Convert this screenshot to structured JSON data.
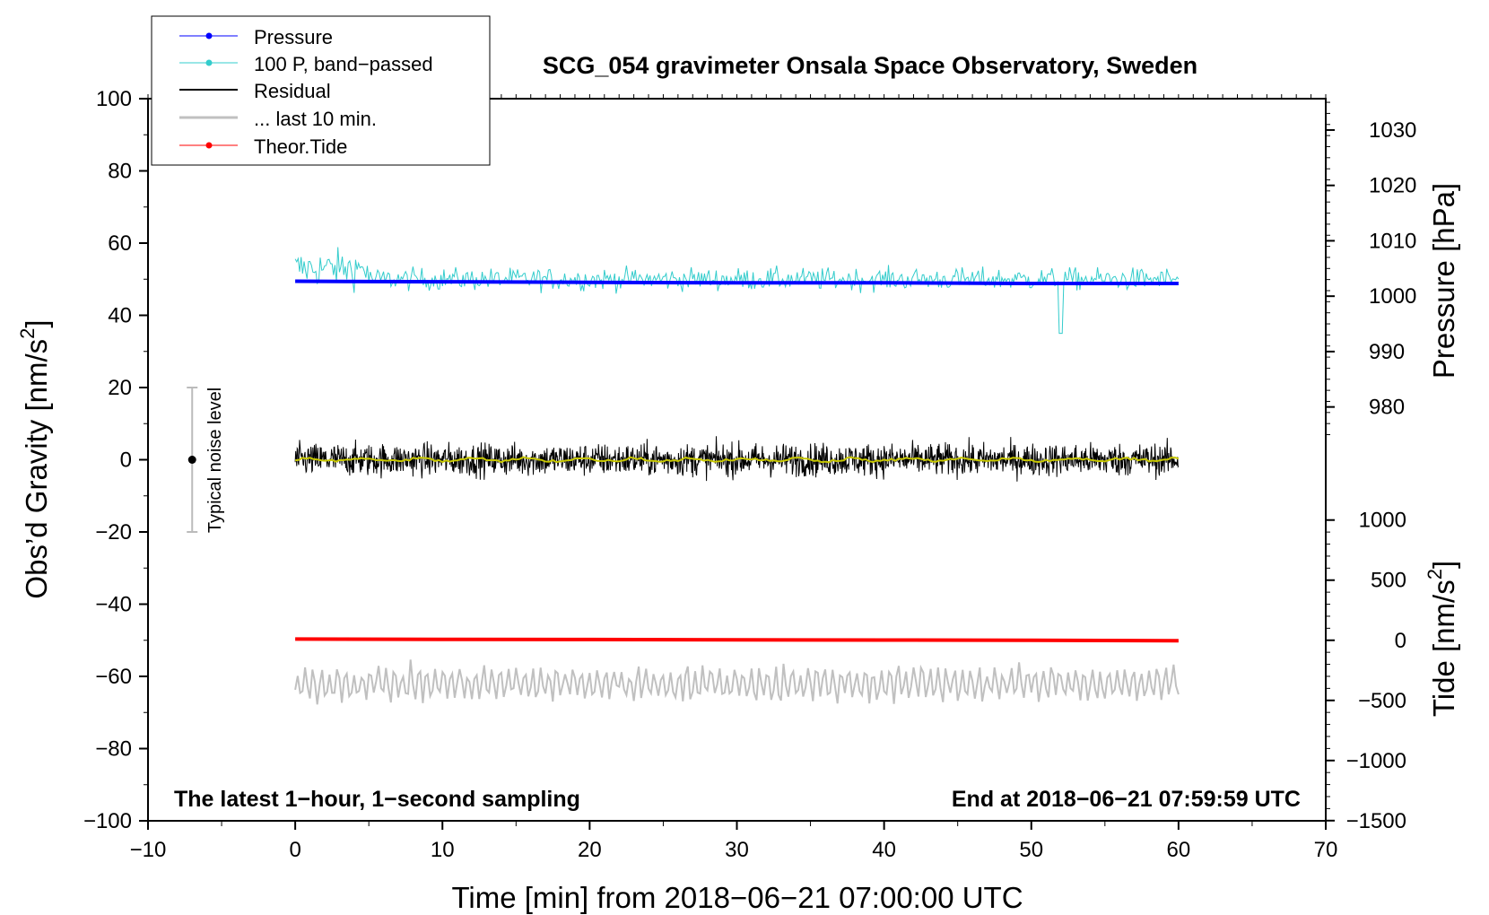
{
  "colors": {
    "pressure": "#0000ff",
    "band_passed": "#33cccc",
    "residual": "#000000",
    "residual_smooth": "#c8c800",
    "last10": "#c0c0c0",
    "tide": "#ff0000",
    "noise_bar": "#bbbbbb"
  },
  "chart_data": {
    "type": "line",
    "title": "SCG_054 gravimeter Onsala Space Observatory, Sweden",
    "xlabel": "Time [min] from 2018−06−21 07:00:00 UTC",
    "ylabel": "Obs’d Gravity [nm/s",
    "ylabel_sup": "2",
    "ylabel_end": "]",
    "xlim": [
      -10,
      70
    ],
    "ylim": [
      -100,
      100
    ],
    "x_ticks": [
      -10,
      0,
      10,
      20,
      30,
      40,
      50,
      60,
      70
    ],
    "x_tick_labels": [
      "−10",
      "0",
      "10",
      "20",
      "30",
      "40",
      "50",
      "60",
      "70"
    ],
    "y_ticks": [
      -100,
      -80,
      -60,
      -40,
      -20,
      0,
      20,
      40,
      60,
      80,
      100
    ],
    "y_tick_labels": [
      "−100",
      "−80",
      "−60",
      "−40",
      "−20",
      "0",
      "20",
      "40",
      "60",
      "80",
      "100"
    ],
    "pressure_axis": {
      "label": "Pressure [hPa]",
      "ticks": [
        980,
        990,
        1000,
        1010,
        1020,
        1030
      ],
      "tick_labels": [
        "980",
        "990",
        "1000",
        "1010",
        "1020",
        "1030"
      ],
      "mapping_gravity_at_1000": 45.3,
      "gravity_per_hPa": 1.534
    },
    "tide_axis": {
      "label": "Tide [nm/s",
      "label_sup": "2",
      "label_end": "]",
      "ticks": [
        -1500,
        -1000,
        -500,
        0,
        500,
        1000
      ],
      "tick_labels": [
        "−1500",
        "−1000",
        "−500",
        "0",
        "500",
        "1000"
      ],
      "mapping_gravity_at_0": -50,
      "gravity_per_unit": 0.0333
    },
    "series": [
      {
        "name": "Pressure",
        "unit": "hPa",
        "x": [
          0,
          10,
          20,
          30,
          40,
          50,
          60
        ],
        "values": [
          1002.7,
          1002.6,
          1002.5,
          1002.4,
          1002.4,
          1002.3,
          1002.3
        ]
      },
      {
        "name": "100 P, band−passed",
        "unit": "nm/s2",
        "approx_mean": 50.0,
        "approx_range": [
          35,
          60
        ]
      },
      {
        "name": "Residual",
        "unit": "nm/s2",
        "approx_mean": 0.0,
        "approx_range": [
          -14,
          10
        ]
      },
      {
        "name": "... last 10 min.",
        "unit": "nm/s2 (plotted offset)",
        "approx_mean": -62,
        "approx_range": [
          -74,
          -52
        ]
      },
      {
        "name": "Theor.Tide",
        "unit": "nm/s2",
        "x": [
          0,
          10,
          20,
          30,
          40,
          50,
          60
        ],
        "values": [
          10,
          8,
          6,
          4,
          2,
          0,
          -3
        ]
      }
    ],
    "legend": {
      "placement": "top-left",
      "entries": [
        "Pressure",
        "100 P, band−passed",
        "Residual",
        "... last 10 min.",
        "Theor.Tide"
      ]
    },
    "noise_bar": {
      "label": "Typical noise level",
      "x": -7,
      "y_low": -20,
      "y_high": 20,
      "y_center": 0
    },
    "annotation_left": "The latest 1−hour, 1−second sampling",
    "annotation_right": "End at 2018−06−21 07:59:59 UTC"
  }
}
